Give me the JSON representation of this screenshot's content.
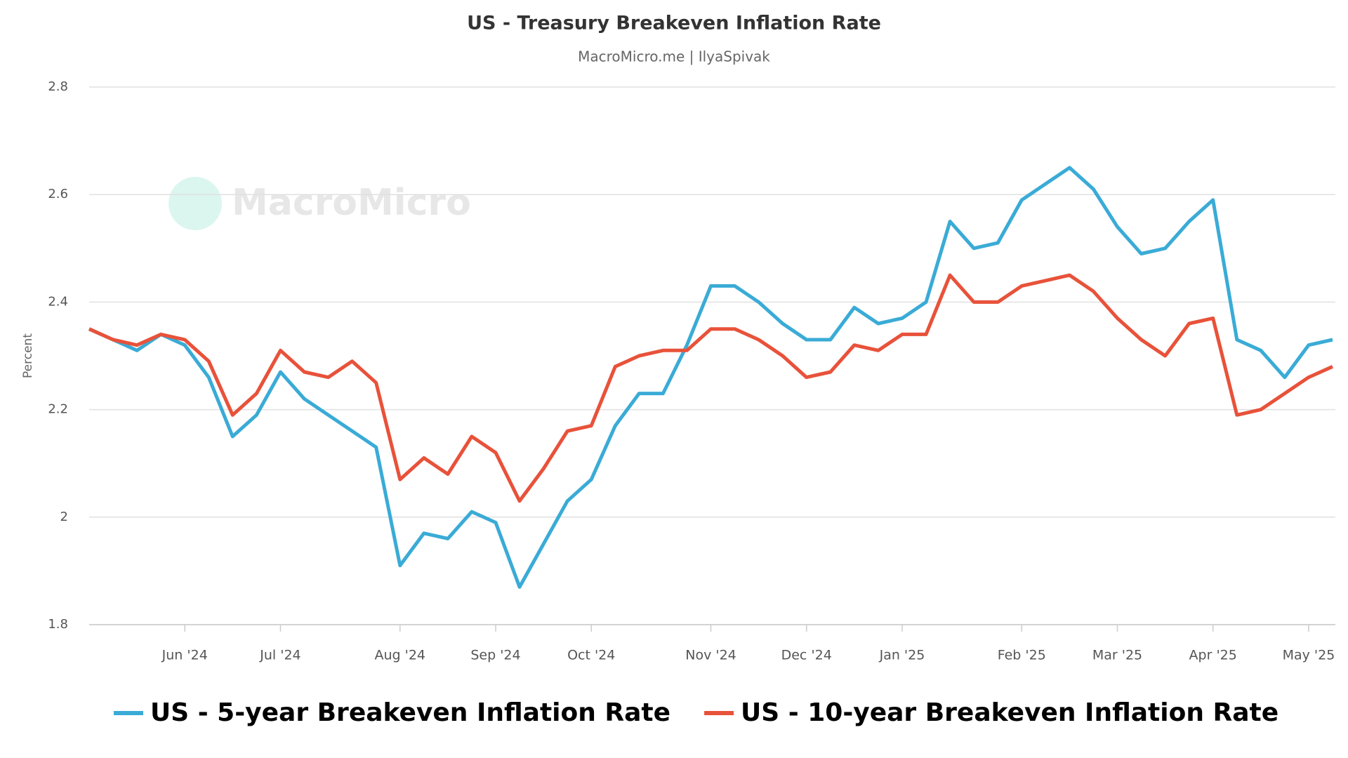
{
  "chart_data": {
    "type": "line",
    "title": "US - Treasury Breakeven Inflation Rate",
    "subtitle": "MacroMicro.me | IlyaSpivak",
    "watermark": "MacroMicro",
    "y_label": "Percent",
    "categories": [
      null,
      null,
      null,
      null,
      "Jun '24",
      null,
      null,
      null,
      "Jul '24",
      null,
      null,
      null,
      null,
      "Aug '24",
      null,
      null,
      null,
      "Sep '24",
      null,
      null,
      null,
      "Oct '24",
      null,
      null,
      null,
      null,
      "Nov '24",
      null,
      null,
      null,
      "Dec '24",
      null,
      null,
      null,
      "Jan '25",
      null,
      null,
      null,
      null,
      "Feb '25",
      null,
      null,
      null,
      "Mar '25",
      null,
      null,
      null,
      "Apr '25",
      null,
      null,
      null,
      "May '25",
      null
    ],
    "series": [
      {
        "name": "US - 5-year Breakeven Inflation Rate",
        "color": "#3aabd6",
        "values": [
          2.35,
          2.33,
          2.31,
          2.34,
          2.32,
          2.26,
          2.15,
          2.19,
          2.27,
          2.22,
          2.19,
          2.16,
          2.13,
          1.91,
          1.97,
          1.96,
          2.01,
          1.99,
          1.87,
          1.95,
          2.03,
          2.07,
          2.17,
          2.23,
          2.23,
          2.32,
          2.43,
          2.43,
          2.4,
          2.36,
          2.33,
          2.33,
          2.39,
          2.36,
          2.37,
          2.4,
          2.55,
          2.5,
          2.51,
          2.59,
          2.62,
          2.65,
          2.61,
          2.54,
          2.49,
          2.5,
          2.55,
          2.59,
          2.33,
          2.31,
          2.26,
          2.32,
          2.33
        ]
      },
      {
        "name": "US - 10-year Breakeven Inflation Rate",
        "color": "#e8523a",
        "values": [
          2.35,
          2.33,
          2.32,
          2.34,
          2.33,
          2.29,
          2.19,
          2.23,
          2.31,
          2.27,
          2.26,
          2.29,
          2.25,
          2.07,
          2.11,
          2.08,
          2.15,
          2.12,
          2.03,
          2.09,
          2.16,
          2.17,
          2.28,
          2.3,
          2.31,
          2.31,
          2.35,
          2.35,
          2.33,
          2.3,
          2.26,
          2.27,
          2.32,
          2.31,
          2.34,
          2.34,
          2.45,
          2.4,
          2.4,
          2.43,
          2.44,
          2.45,
          2.42,
          2.37,
          2.33,
          2.3,
          2.36,
          2.37,
          2.19,
          2.2,
          2.23,
          2.26,
          2.28
        ]
      }
    ],
    "ylim": [
      1.8,
      2.8
    ],
    "yticks": [
      1.8,
      2,
      2.2,
      2.4,
      2.6,
      2.8
    ],
    "grid": true
  }
}
